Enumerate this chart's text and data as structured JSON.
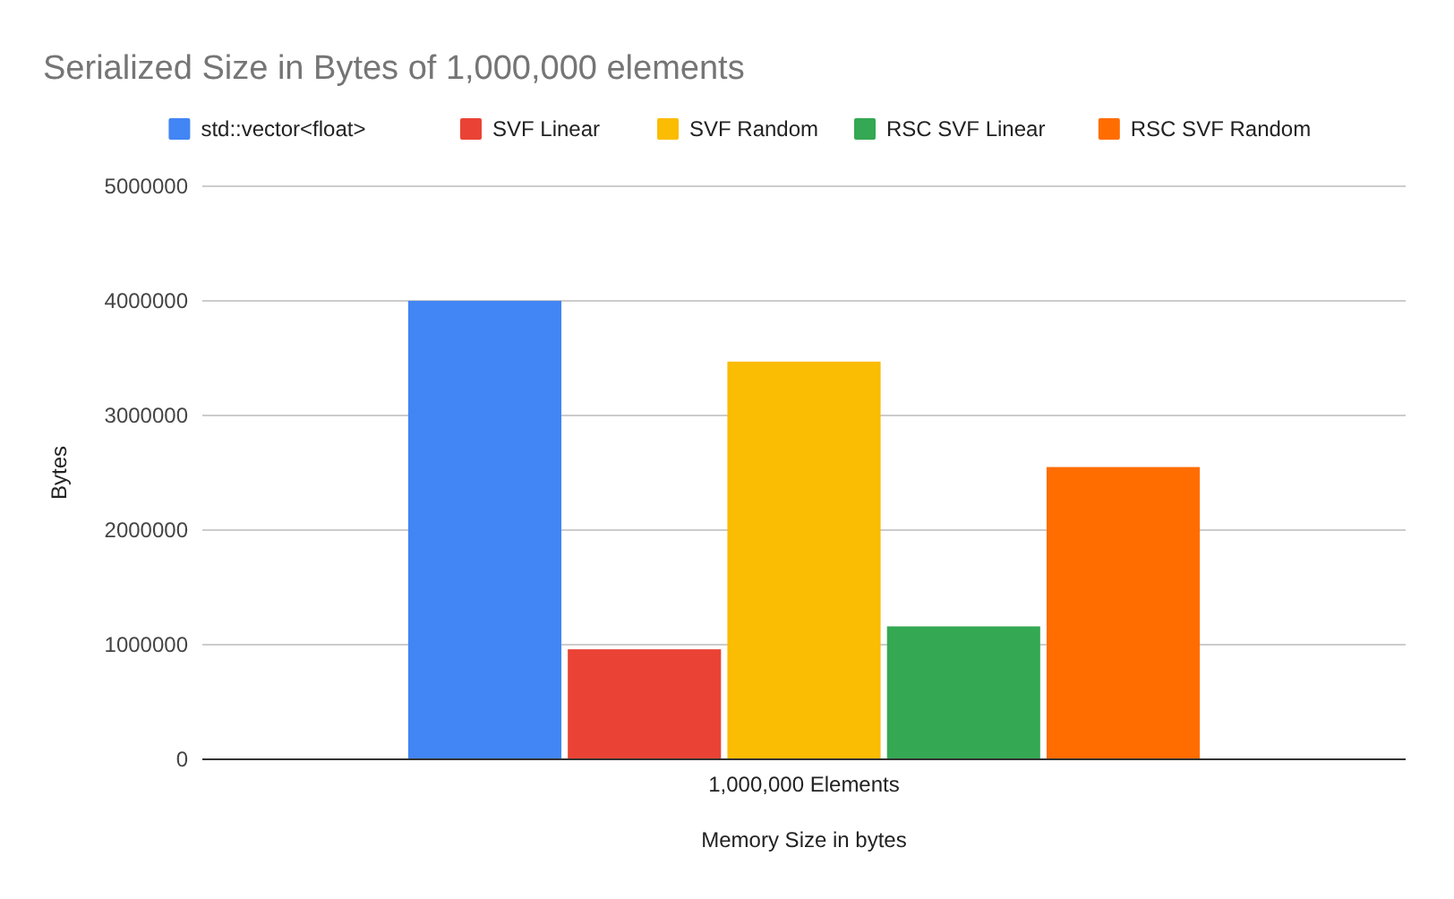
{
  "chart_data": {
    "type": "bar",
    "title": "Serialized Size in Bytes of 1,000,000 elements",
    "xlabel": "Memory Size in bytes",
    "ylabel": "Bytes",
    "categories": [
      "1,000,000 Elements"
    ],
    "series": [
      {
        "name": "std::vector<float>",
        "color": "#4285f4",
        "values": [
          4000000
        ]
      },
      {
        "name": "SVF Linear",
        "color": "#ea4335",
        "values": [
          960000
        ]
      },
      {
        "name": "SVF Random",
        "color": "#fbbc04",
        "values": [
          3470000
        ]
      },
      {
        "name": "RSC SVF Linear",
        "color": "#34a853",
        "values": [
          1160000
        ]
      },
      {
        "name": "RSC SVF Random",
        "color": "#ff6d01",
        "values": [
          2550000
        ]
      }
    ],
    "ylim": [
      0,
      5000000
    ],
    "yticks": [
      0,
      1000000,
      2000000,
      3000000,
      4000000,
      5000000
    ],
    "grid": "y",
    "legend": "top"
  }
}
